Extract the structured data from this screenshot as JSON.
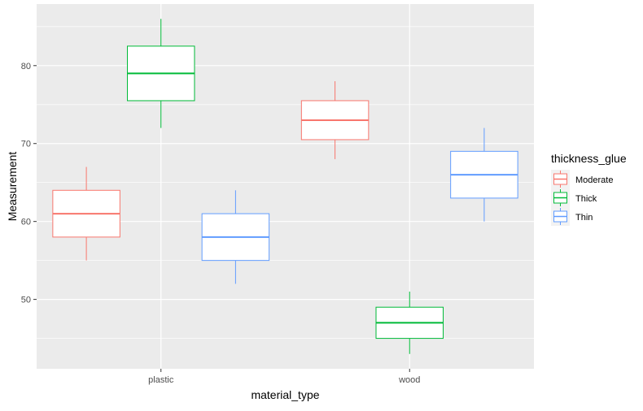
{
  "chart_data": {
    "type": "boxplot",
    "xlabel": "material_type",
    "ylabel": "Measurement",
    "categories": [
      "plastic",
      "wood"
    ],
    "y_ticks": [
      50,
      60,
      70,
      80
    ],
    "ylim": [
      41.1,
      87.9
    ],
    "grid": true,
    "legend": {
      "title": "thickness_glue",
      "position": "right",
      "entries": [
        "Moderate",
        "Thick",
        "Thin"
      ]
    },
    "series": [
      {
        "name": "Moderate",
        "color": "#F8766D",
        "boxes": [
          {
            "category": "plastic",
            "min": 55,
            "q1": 58,
            "median": 61,
            "q3": 64,
            "max": 67
          },
          {
            "category": "wood",
            "min": 68,
            "q1": 70.5,
            "median": 73,
            "q3": 75.5,
            "max": 78
          }
        ]
      },
      {
        "name": "Thick",
        "color": "#00BA38",
        "boxes": [
          {
            "category": "plastic",
            "min": 72,
            "q1": 75.5,
            "median": 79,
            "q3": 82.5,
            "max": 86
          },
          {
            "category": "wood",
            "min": 43,
            "q1": 45,
            "median": 47,
            "q3": 49,
            "max": 51
          }
        ]
      },
      {
        "name": "Thin",
        "color": "#619CFF",
        "boxes": [
          {
            "category": "plastic",
            "min": 52,
            "q1": 55,
            "median": 58,
            "q3": 61,
            "max": 64
          },
          {
            "category": "wood",
            "min": 60,
            "q1": 63,
            "median": 66,
            "q3": 69,
            "max": 72
          }
        ]
      }
    ]
  }
}
